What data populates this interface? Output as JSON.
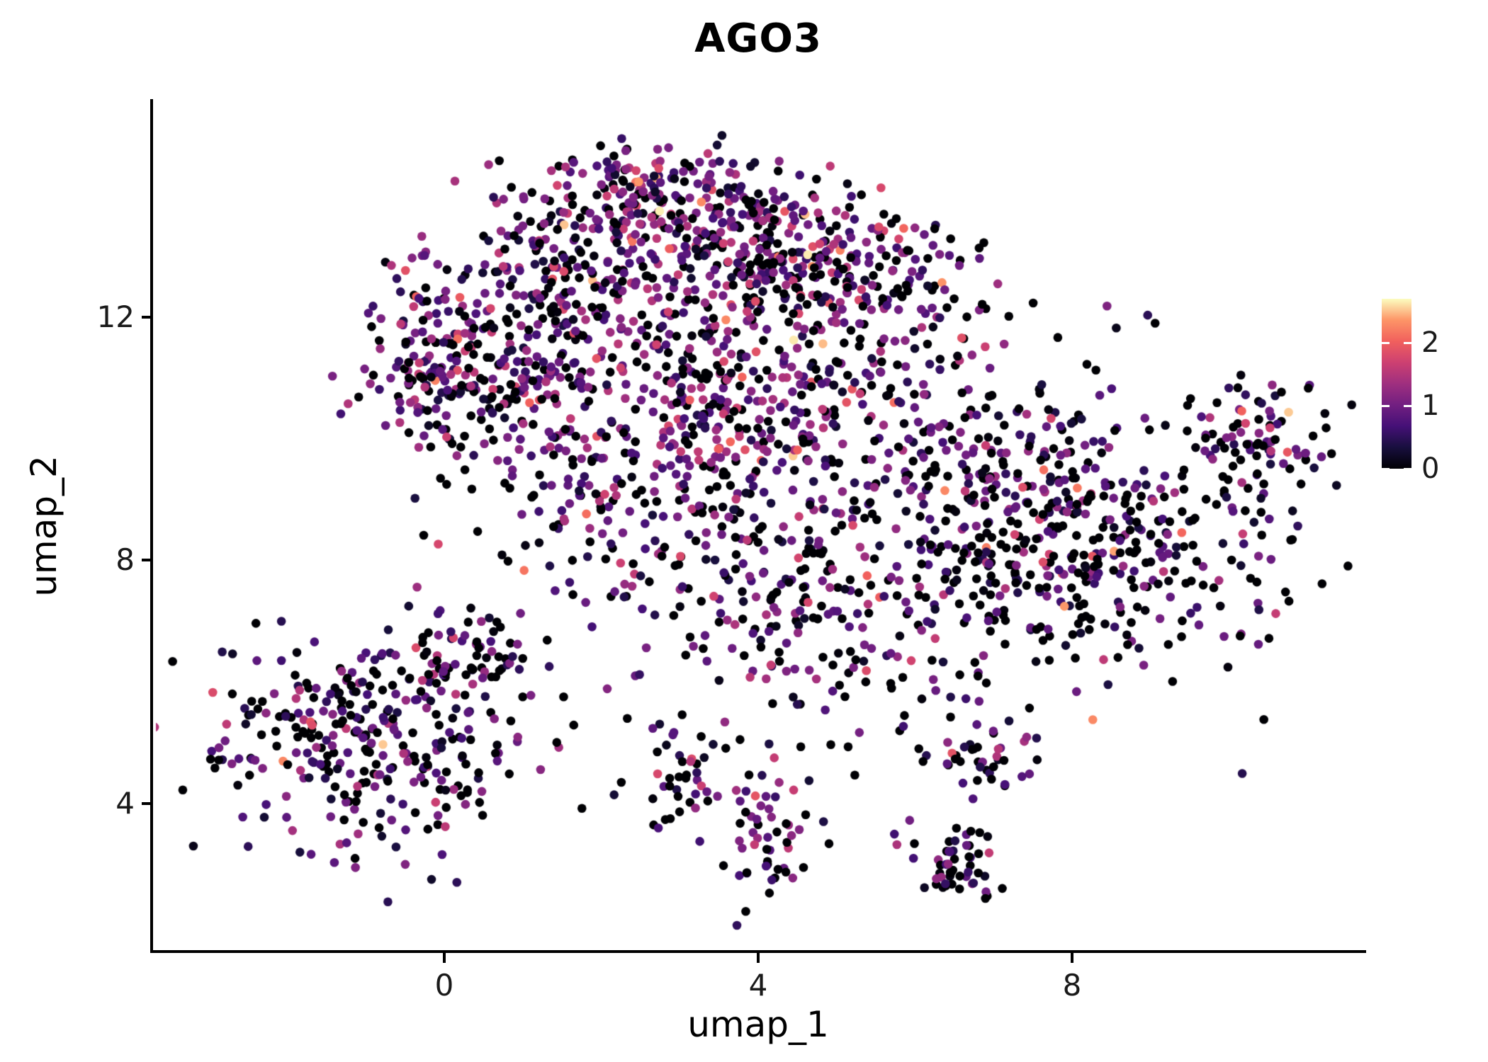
{
  "page": {
    "background": "#FFFFFF"
  },
  "chart_data": {
    "type": "scatter",
    "title": "AGO3",
    "xlabel": "umap_1",
    "ylabel": "umap_2",
    "xlim": [
      -3.72,
      11.72
    ],
    "ylim": [
      1.56,
      15.58
    ],
    "xticks": [
      0,
      4,
      8
    ],
    "yticks": [
      4,
      8,
      12
    ],
    "grid": false,
    "legend_position": "right",
    "background": "#FFFFFF",
    "point_radius_px": 6.3,
    "seed": 20240501,
    "color_scale": {
      "name": "magma",
      "vmin": 0,
      "vmax": 2.7,
      "ticks": [
        0,
        1,
        2
      ],
      "stops": [
        {
          "t": 0.0,
          "c": "#000004"
        },
        {
          "t": 0.125,
          "c": "#180F3E"
        },
        {
          "t": 0.25,
          "c": "#451077"
        },
        {
          "t": 0.375,
          "c": "#721F81"
        },
        {
          "t": 0.5,
          "c": "#9F2F7F"
        },
        {
          "t": 0.625,
          "c": "#CD4071"
        },
        {
          "t": 0.75,
          "c": "#F1605D"
        },
        {
          "t": 0.875,
          "c": "#FD9567"
        },
        {
          "t": 1.0,
          "c": "#FCFDBF"
        }
      ]
    },
    "clusters": [
      {
        "name": "top-ridge",
        "cx": 2.6,
        "cy": 14.0,
        "sx": 0.85,
        "sy": 0.45,
        "n": 170,
        "p_zero": 0.22,
        "expr_mean": 0.95,
        "expr_sd": 0.5
      },
      {
        "name": "top-right",
        "cx": 3.9,
        "cy": 13.2,
        "sx": 0.9,
        "sy": 0.55,
        "n": 190,
        "p_zero": 0.25,
        "expr_mean": 0.95,
        "expr_sd": 0.5
      },
      {
        "name": "top-left",
        "cx": 1.5,
        "cy": 12.8,
        "sx": 0.9,
        "sy": 0.55,
        "n": 150,
        "p_zero": 0.25,
        "expr_mean": 0.9,
        "expr_sd": 0.5
      },
      {
        "name": "upper-right",
        "cx": 4.8,
        "cy": 12.5,
        "sx": 0.7,
        "sy": 0.6,
        "n": 130,
        "p_zero": 0.25,
        "expr_mean": 1.0,
        "expr_sd": 0.55
      },
      {
        "name": "left-shoulder",
        "cx": -0.1,
        "cy": 11.2,
        "sx": 0.55,
        "sy": 0.75,
        "n": 150,
        "p_zero": 0.28,
        "expr_mean": 0.9,
        "expr_sd": 0.5
      },
      {
        "name": "left-shoulder-inner",
        "cx": 0.9,
        "cy": 10.7,
        "sx": 0.7,
        "sy": 0.7,
        "n": 110,
        "p_zero": 0.3,
        "expr_mean": 0.85,
        "expr_sd": 0.5
      },
      {
        "name": "upper-band",
        "cx": 2.4,
        "cy": 11.4,
        "sx": 1.2,
        "sy": 0.75,
        "n": 150,
        "p_zero": 0.28,
        "expr_mean": 0.9,
        "expr_sd": 0.5
      },
      {
        "name": "center-dense",
        "cx": 3.7,
        "cy": 10.4,
        "sx": 0.9,
        "sy": 0.8,
        "n": 170,
        "p_zero": 0.25,
        "expr_mean": 1.05,
        "expr_sd": 0.55
      },
      {
        "name": "center-mid",
        "cx": 2.7,
        "cy": 8.8,
        "sx": 1.2,
        "sy": 0.95,
        "n": 150,
        "p_zero": 0.32,
        "expr_mean": 0.85,
        "expr_sd": 0.5
      },
      {
        "name": "center-low",
        "cx": 4.2,
        "cy": 7.5,
        "sx": 1.2,
        "sy": 0.9,
        "n": 110,
        "p_zero": 0.38,
        "expr_mean": 0.75,
        "expr_sd": 0.5
      },
      {
        "name": "east-main",
        "cx": 8.1,
        "cy": 8.2,
        "sx": 1.4,
        "sy": 1.0,
        "n": 430,
        "p_zero": 0.48,
        "expr_mean": 0.65,
        "expr_sd": 0.45
      },
      {
        "name": "east-upper",
        "cx": 6.8,
        "cy": 9.7,
        "sx": 0.9,
        "sy": 0.8,
        "n": 140,
        "p_zero": 0.4,
        "expr_mean": 0.75,
        "expr_sd": 0.5
      },
      {
        "name": "far-right",
        "cx": 10.3,
        "cy": 10.1,
        "sx": 0.5,
        "sy": 0.4,
        "n": 70,
        "p_zero": 0.35,
        "expr_mean": 0.8,
        "expr_sd": 0.5
      },
      {
        "name": "lower-left",
        "cx": -1.0,
        "cy": 5.1,
        "sx": 1.05,
        "sy": 0.85,
        "n": 310,
        "p_zero": 0.38,
        "expr_mean": 0.75,
        "expr_sd": 0.5
      },
      {
        "name": "lower-left-top",
        "cx": 0.2,
        "cy": 6.4,
        "sx": 0.5,
        "sy": 0.45,
        "n": 70,
        "p_zero": 0.35,
        "expr_mean": 0.8,
        "expr_sd": 0.5
      },
      {
        "name": "bottom-center",
        "cx": 3.1,
        "cy": 4.4,
        "sx": 0.7,
        "sy": 0.5,
        "n": 55,
        "p_zero": 0.4,
        "expr_mean": 0.75,
        "expr_sd": 0.5
      },
      {
        "name": "bottom-center-low",
        "cx": 4.15,
        "cy": 3.3,
        "sx": 0.35,
        "sy": 0.5,
        "n": 50,
        "p_zero": 0.38,
        "expr_mean": 0.8,
        "expr_sd": 0.5
      },
      {
        "name": "bottom-right-low",
        "cx": 6.5,
        "cy": 3.0,
        "sx": 0.3,
        "sy": 0.4,
        "n": 55,
        "p_zero": 0.42,
        "expr_mean": 0.7,
        "expr_sd": 0.5
      },
      {
        "name": "bottom-right-mid",
        "cx": 6.8,
        "cy": 4.8,
        "sx": 0.35,
        "sy": 0.3,
        "n": 40,
        "p_zero": 0.4,
        "expr_mean": 0.75,
        "expr_sd": 0.5
      },
      {
        "name": "bridge-sparse",
        "cx": 5.4,
        "cy": 6.3,
        "sx": 1.0,
        "sy": 0.8,
        "n": 75,
        "p_zero": 0.45,
        "expr_mean": 0.7,
        "expr_sd": 0.5
      },
      {
        "name": "upper-bridge",
        "cx": 5.6,
        "cy": 11.7,
        "sx": 0.9,
        "sy": 0.8,
        "n": 100,
        "p_zero": 0.3,
        "expr_mean": 0.95,
        "expr_sd": 0.55
      },
      {
        "name": "diffuse-fill",
        "cx": 4.0,
        "cy": 10.0,
        "sx": 2.6,
        "sy": 2.0,
        "n": 130,
        "p_zero": 0.38,
        "expr_mean": 0.8,
        "expr_sd": 0.5
      }
    ]
  }
}
